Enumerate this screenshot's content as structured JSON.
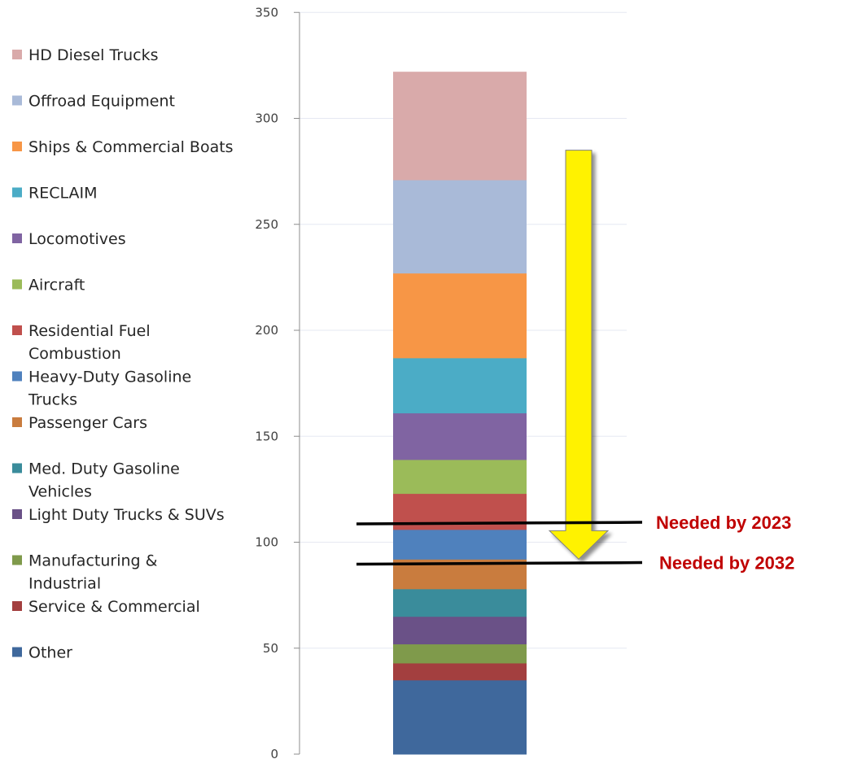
{
  "chart_data": {
    "type": "bar",
    "stacked": true,
    "categories": [
      ""
    ],
    "ylim": [
      0,
      350
    ],
    "yticks": [
      0,
      50,
      100,
      150,
      200,
      250,
      300,
      350
    ],
    "grid": true,
    "legend_position": "left",
    "series": [
      {
        "name": "Other",
        "values": [
          35
        ],
        "color": "#3F689C"
      },
      {
        "name": "Service & Commercial",
        "values": [
          8
        ],
        "color": "#A33F3F"
      },
      {
        "name": "Manufacturing & Industrial",
        "values": [
          9
        ],
        "color": "#7F9A4B"
      },
      {
        "name": "Light Duty Trucks & SUVs",
        "values": [
          13
        ],
        "color": "#6A5187"
      },
      {
        "name": "Med. Duty Gasoline Vehicles",
        "values": [
          13
        ],
        "color": "#3A8C9B"
      },
      {
        "name": "Passenger Cars",
        "values": [
          14
        ],
        "color": "#C97C3E"
      },
      {
        "name": "Heavy-Duty Gasoline Trucks",
        "values": [
          14
        ],
        "color": "#4F81BD"
      },
      {
        "name": "Residential Fuel Combustion",
        "values": [
          17
        ],
        "color": "#C0504D"
      },
      {
        "name": "Aircraft",
        "values": [
          16
        ],
        "color": "#9BBB59"
      },
      {
        "name": "Locomotives",
        "values": [
          22
        ],
        "color": "#8064A2"
      },
      {
        "name": "RECLAIM",
        "values": [
          26
        ],
        "color": "#4BACC6"
      },
      {
        "name": "Ships & Commercial Boats",
        "values": [
          40
        ],
        "color": "#F79646"
      },
      {
        "name": "Offroad Equipment",
        "values": [
          44
        ],
        "color": "#A9BAD8"
      },
      {
        "name": "HD Diesel Trucks",
        "values": [
          51
        ],
        "color": "#D9AAAA"
      }
    ],
    "legend_order": [
      {
        "label": "HD Diesel Trucks",
        "lines": [
          "HD Diesel Trucks"
        ],
        "color": "#D9AAAA"
      },
      {
        "label": "Offroad Equipment",
        "lines": [
          "Offroad Equipment"
        ],
        "color": "#A9BAD8"
      },
      {
        "label": "Ships & Commercial Boats",
        "lines": [
          "Ships & Commercial Boats"
        ],
        "color": "#F79646"
      },
      {
        "label": "RECLAIM",
        "lines": [
          "RECLAIM"
        ],
        "color": "#4BACC6"
      },
      {
        "label": "Locomotives",
        "lines": [
          "Locomotives"
        ],
        "color": "#8064A2"
      },
      {
        "label": "Aircraft",
        "lines": [
          "Aircraft"
        ],
        "color": "#9BBB59"
      },
      {
        "label": "Residential Fuel Combustion",
        "lines": [
          "Residential Fuel",
          "Combustion"
        ],
        "color": "#C0504D"
      },
      {
        "label": "Heavy-Duty Gasoline Trucks",
        "lines": [
          "Heavy-Duty Gasoline",
          "Trucks"
        ],
        "color": "#4F81BD"
      },
      {
        "label": "Passenger Cars",
        "lines": [
          "Passenger Cars"
        ],
        "color": "#C97C3E"
      },
      {
        "label": "Med. Duty Gasoline Vehicles",
        "lines": [
          "Med. Duty Gasoline",
          "Vehicles"
        ],
        "color": "#3A8C9B"
      },
      {
        "label": "Light Duty Trucks & SUVs",
        "lines": [
          "Light Duty Trucks & SUVs"
        ],
        "color": "#6A5187"
      },
      {
        "label": "Manufacturing & Industrial",
        "lines": [
          "Manufacturing &",
          "Industrial"
        ],
        "color": "#7F9A4B"
      },
      {
        "label": "Service & Commercial",
        "lines": [
          "Service & Commercial"
        ],
        "color": "#A33F3F"
      },
      {
        "label": "Other",
        "lines": [
          "Other"
        ],
        "color": "#3F689C"
      }
    ],
    "annotations": [
      {
        "text": "Needed by 2023",
        "value": 109,
        "color": "#C00000"
      },
      {
        "text": "Needed by 2032",
        "value": 90,
        "color": "#C00000"
      }
    ],
    "arrow": {
      "from": 285,
      "to": 92,
      "color": "#FFF200"
    }
  }
}
